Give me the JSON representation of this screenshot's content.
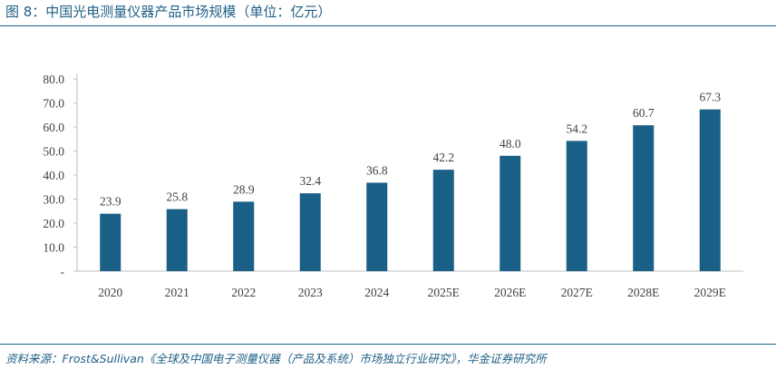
{
  "figure": {
    "title": "图 8：中国光电测量仪器产品市场规模（单位：亿元）",
    "source": "资料来源：Frost&Sullivan《全球及中国电子测量仪器（产品及系统）市场独立行业研究》，华金证券研究所"
  },
  "colors": {
    "bar": "#1a5f86",
    "text": "#404040",
    "axis": "#bfbfbf",
    "title": "#1f5f86"
  },
  "chart_data": {
    "type": "bar",
    "title": "",
    "xlabel": "",
    "ylabel": "",
    "categories": [
      "2020",
      "2021",
      "2022",
      "2023",
      "2024",
      "2025E",
      "2026E",
      "2027E",
      "2028E",
      "2029E"
    ],
    "values": [
      23.9,
      25.8,
      28.9,
      32.4,
      36.8,
      42.2,
      48.0,
      54.2,
      60.7,
      67.3
    ],
    "value_labels": [
      "23.9",
      "25.8",
      "28.9",
      "32.4",
      "36.8",
      "42.2",
      "48.0",
      "54.2",
      "60.7",
      "67.3"
    ],
    "ylim": [
      0,
      80
    ],
    "y_ticks": [
      0,
      10,
      20,
      30,
      40,
      50,
      60,
      70,
      80
    ],
    "y_tick_labels": [
      "-",
      "10.0",
      "20.0",
      "30.0",
      "40.0",
      "50.0",
      "60.0",
      "70.0",
      "80.0"
    ],
    "grid": false,
    "legend": "none"
  }
}
